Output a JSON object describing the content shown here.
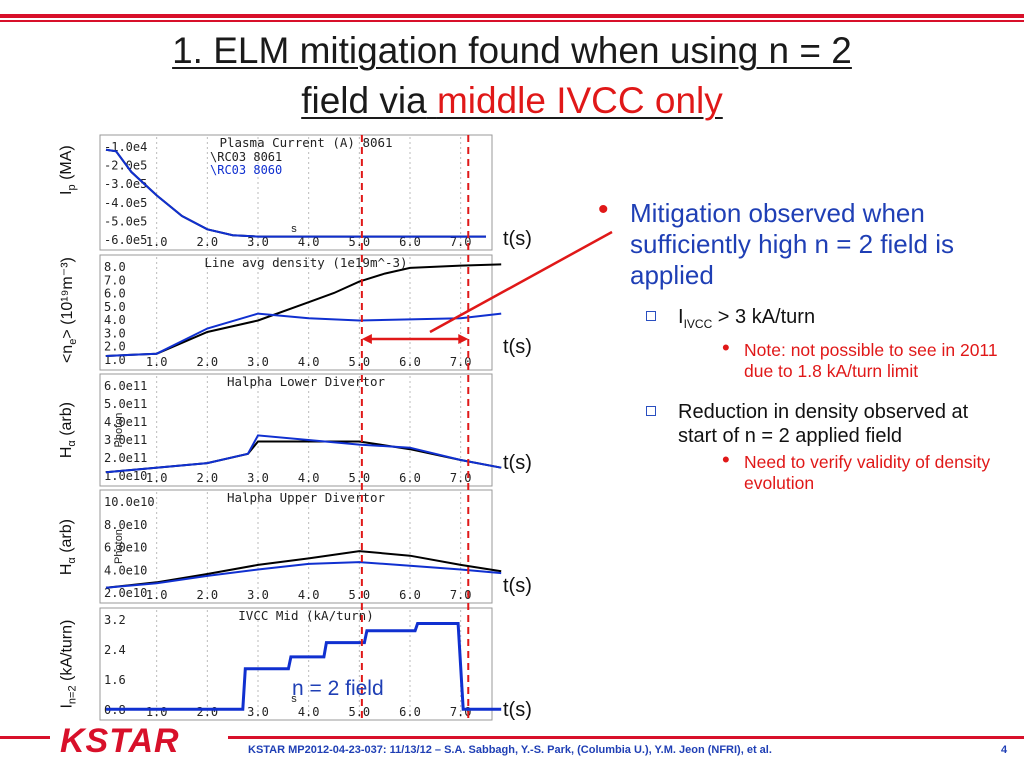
{
  "slide": {
    "title_line1": "1. ELM mitigation found when using n = 2",
    "title_line2_prefix": "field via",
    "title_highlight": "middle IVCC only",
    "footer": "KSTAR MP2012-04-23-037: 11/13/12 – S.A. Sabbagh, Y.-S. Park, (Columbia U.), Y.M. Jeon (NFRI), et al.",
    "page_number": "4",
    "logo_text": "KSTAR"
  },
  "y_labels": [
    {
      "main": "I",
      "sub": "p",
      "rest": " (MA)"
    },
    {
      "main": "<n",
      "sub": "e",
      "rest": "> (10¹⁹m⁻³)"
    },
    {
      "main": "H",
      "sub": "α",
      "rest": " (arb)"
    },
    {
      "main": "H",
      "sub": "α",
      "rest": " (arb)"
    },
    {
      "main": "I",
      "sub": "n=2",
      "rest": " (kA/turn)"
    }
  ],
  "time_label": "t(s)",
  "annotation": "n = 2 field",
  "bullets": {
    "main": "Mitigation observed when sufficiently high n = 2 field is applied",
    "sub1_prefix": "I",
    "sub1_sub": "IVCC",
    "sub1_rest": " > 3 kA/turn",
    "sub1_note": "Note: not possible to see in 2011 due to 1.8 kA/turn limit",
    "sub2": "Reduction in density observed at start of n = 2 applied field",
    "sub2_note": "Need to verify validity of density evolution"
  },
  "chart_data": [
    {
      "type": "line",
      "title": "Plasma Current (A) 8061",
      "legend": [
        "\\RC03 8061",
        "\\RC03 8060"
      ],
      "ytick_labels": [
        "-1.0e4",
        "-2.0e5",
        "-3.0e5",
        "-4.0e5",
        "-5.0e5",
        "-6.0e5"
      ],
      "xtick_labels": [
        "1.0",
        "2.0",
        "3.0",
        "4.0",
        "5.0",
        "6.0",
        "7.0"
      ],
      "xlabel": "s",
      "series": [
        {
          "name": "\\RC03 8061",
          "color": "#000000",
          "x": [
            0.0,
            0.2,
            0.5,
            1.0,
            1.5,
            2.0,
            2.5,
            3.0,
            7.5
          ],
          "y": [
            -0.1,
            -0.2,
            -1.6,
            -3.2,
            -4.6,
            -5.5,
            -5.9,
            -6.0,
            -6.0
          ]
        },
        {
          "name": "\\RC03 8060",
          "color": "#1030d0",
          "x": [
            0.0,
            0.2,
            0.5,
            1.0,
            1.5,
            2.0,
            2.5,
            3.0,
            7.5
          ],
          "y": [
            -0.1,
            -0.2,
            -1.6,
            -3.2,
            -4.6,
            -5.5,
            -5.9,
            -6.0,
            -6.0
          ]
        }
      ],
      "xlim": [
        0.0,
        7.5
      ],
      "ylim": [
        -6.5,
        0.5
      ]
    },
    {
      "type": "line",
      "title": "Line avg density (1e19m^-3)",
      "ytick_labels": [
        "8.0",
        "7.0",
        "6.0",
        "5.0",
        "4.0",
        "3.0",
        "2.0",
        "1.0"
      ],
      "xtick_labels": [
        "1.0",
        "2.0",
        "3.0",
        "4.0",
        "5.0",
        "6.0",
        "7.0"
      ],
      "series": [
        {
          "color": "#000000",
          "x": [
            0.0,
            1.0,
            2.0,
            3.0,
            4.0,
            4.5,
            5.0,
            5.5,
            6.0,
            7.0,
            7.8
          ],
          "y": [
            0.7,
            0.9,
            2.8,
            3.8,
            5.4,
            6.2,
            7.2,
            7.9,
            8.4,
            8.6,
            8.7
          ]
        },
        {
          "color": "#1030d0",
          "x": [
            0.0,
            1.0,
            2.0,
            3.0,
            4.0,
            5.0,
            6.0,
            7.0,
            7.8
          ],
          "y": [
            0.7,
            0.9,
            3.1,
            4.4,
            4.0,
            3.8,
            3.9,
            4.0,
            4.4
          ]
        }
      ],
      "xlim": [
        0.0,
        7.5
      ],
      "ylim": [
        0.0,
        9.0
      ]
    },
    {
      "type": "line",
      "title": "Halpha Lower Divertor",
      "ytick_labels": [
        "6.0e11",
        "5.0e11",
        "4.0e11",
        "3.0e11",
        "2.0e11",
        "1.0e10"
      ],
      "xtick_labels": [
        "1.0",
        "2.0",
        "3.0",
        "4.0",
        "5.0",
        "6.0",
        "7.0"
      ],
      "ylabel": "Photon",
      "series": [
        {
          "color": "#000000",
          "x": [
            0.0,
            2.0,
            2.8,
            3.0,
            5.0,
            6.0,
            7.0,
            7.8
          ],
          "y": [
            1.0,
            1.6,
            2.2,
            3.0,
            3.0,
            2.5,
            1.8,
            1.3
          ]
        },
        {
          "color": "#1030d0",
          "x": [
            0.0,
            2.0,
            2.8,
            3.0,
            5.0,
            6.0,
            7.0,
            7.8
          ],
          "y": [
            1.0,
            1.6,
            2.2,
            3.4,
            2.8,
            2.6,
            1.8,
            1.3
          ]
        }
      ],
      "xlim": [
        0.0,
        7.5
      ],
      "ylim": [
        0.5,
        7.0
      ]
    },
    {
      "type": "line",
      "title": "Halpha Upper Divertor",
      "ytick_labels": [
        "10.0e10",
        "8.0e10",
        "6.0e10",
        "4.0e10",
        "2.0e10"
      ],
      "xtick_labels": [
        "1.0",
        "2.0",
        "3.0",
        "4.0",
        "5.0",
        "6.0",
        "7.0"
      ],
      "ylabel": "Photon",
      "series": [
        {
          "color": "#000000",
          "x": [
            0.0,
            1.0,
            2.0,
            3.0,
            4.0,
            5.0,
            6.0,
            7.0,
            7.8
          ],
          "y": [
            1.0,
            1.6,
            2.5,
            3.5,
            4.2,
            5.0,
            4.5,
            3.5,
            2.8
          ]
        },
        {
          "color": "#1030d0",
          "x": [
            0.0,
            1.0,
            2.0,
            3.0,
            4.0,
            5.0,
            6.0,
            7.0,
            7.8
          ],
          "y": [
            1.0,
            1.5,
            2.3,
            3.0,
            3.6,
            3.8,
            3.4,
            3.0,
            2.6
          ]
        }
      ],
      "xlim": [
        0.0,
        7.5
      ],
      "ylim": [
        0.0,
        11.0
      ]
    },
    {
      "type": "line",
      "title": "IVCC Mid (kA/turn)",
      "ytick_labels": [
        "3.2",
        "2.4",
        "1.6",
        "0.8"
      ],
      "xtick_labels": [
        "1.0",
        "2.0",
        "3.0",
        "4.0",
        "5.0",
        "6.0",
        "7.0"
      ],
      "xlabel": "s",
      "series": [
        {
          "color": "#1030d0",
          "x": [
            0.0,
            2.7,
            2.75,
            3.6,
            3.65,
            4.3,
            4.35,
            5.1,
            5.15,
            6.1,
            6.15,
            6.95,
            7.05,
            7.8
          ],
          "y": [
            0.0,
            0.0,
            1.7,
            1.7,
            2.2,
            2.2,
            2.8,
            2.8,
            3.3,
            3.3,
            3.6,
            3.6,
            0.0,
            0.0
          ]
        }
      ],
      "xlim": [
        0.0,
        7.5
      ],
      "ylim": [
        -0.2,
        4.0
      ]
    }
  ]
}
